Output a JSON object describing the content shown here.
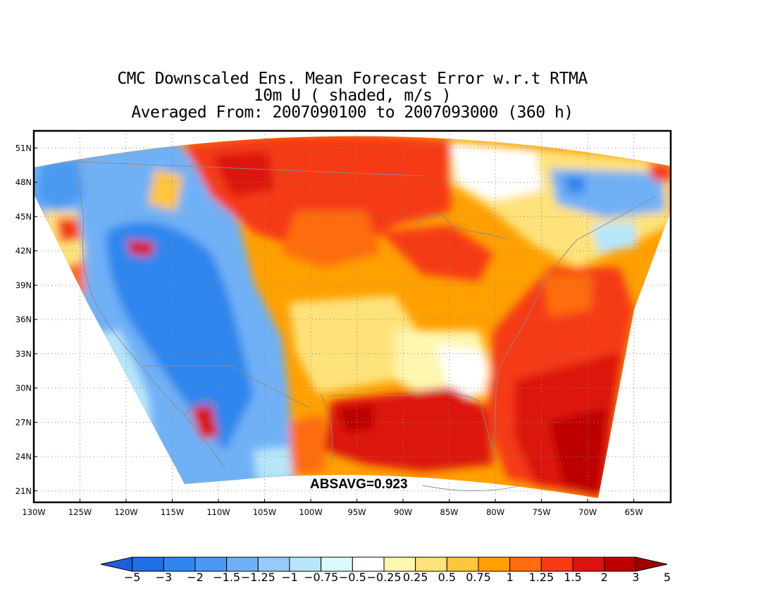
{
  "title": {
    "line1": "CMC Downscaled Ens. Mean Forecast Error w.r.t RTMA",
    "line2": "10m U ( shaded, m/s )",
    "line3": "Averaged From: 2007090100 to 2007093000 (360 h)"
  },
  "map": {
    "lon_range": [
      -130,
      -61
    ],
    "lat_range": [
      20,
      52.5
    ],
    "lat_ticks": [
      "51N",
      "48N",
      "45N",
      "42N",
      "39N",
      "36N",
      "33N",
      "30N",
      "27N",
      "24N",
      "21N"
    ],
    "lon_ticks": [
      "130W",
      "125W",
      "120W",
      "115W",
      "110W",
      "105W",
      "100W",
      "95W",
      "90W",
      "85W",
      "80W",
      "75W",
      "70W",
      "65W"
    ],
    "grid": "dotted",
    "annotation": "ABSAVG=0.923"
  },
  "colorbar": {
    "labels": [
      "−5",
      "−3",
      "−2",
      "−1.5",
      "−1.25",
      "−1",
      "−0.75",
      "−0.5",
      "−0.25",
      "0.25",
      "0.5",
      "0.75",
      "1",
      "1.25",
      "1.5",
      "2",
      "3",
      "5"
    ],
    "colors": [
      "#1e5fdc",
      "#1f6fe6",
      "#2f86ee",
      "#4b9af2",
      "#6fb1f6",
      "#96caf9",
      "#b7e6fb",
      "#dafbfd",
      "#ffffff",
      "#fff6b0",
      "#ffe27a",
      "#ffc53e",
      "#ffa000",
      "#ff6c10",
      "#f53a14",
      "#dc1410",
      "#bd0000",
      "#9e0000"
    ]
  },
  "field_colors": {
    "strong_positive": "#dc1410",
    "positive": "#f53a14",
    "moderate_positive": "#ff6c10",
    "weak_positive": "#ffc53e",
    "near_zero": "#ffffff",
    "weak_negative": "#b7e6fb",
    "moderate_negative": "#6fb1f6",
    "negative": "#2f86ee",
    "deep_positive": "#bd0000"
  }
}
